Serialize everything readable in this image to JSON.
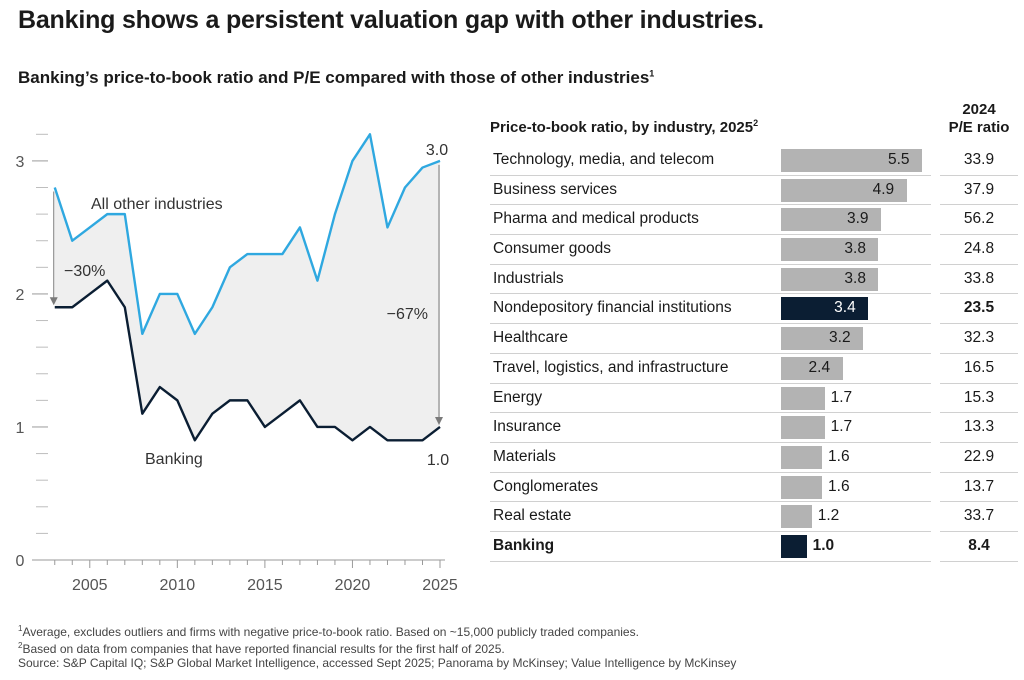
{
  "headline": "Banking shows a persistent valuation gap with other industries.",
  "subtitle": "Banking’s price-to-book ratio and P/E compared with those of other industries",
  "subtitle_sup": "1",
  "chart_data": [
    {
      "type": "line",
      "title": "",
      "xlabel": "",
      "ylabel": "",
      "x_ticks": [
        2005,
        2010,
        2015,
        2020,
        2025
      ],
      "y_ticks": [
        0,
        1,
        2,
        3
      ],
      "xlim": [
        2002.5,
        2025
      ],
      "ylim": [
        0,
        3.3
      ],
      "colors": {
        "other": "#2fa8e0",
        "banking": "#0b1e33",
        "fill": "#efefef",
        "arrow": "#7a7a7a"
      },
      "series": [
        {
          "name": "All other industries",
          "x": [
            2003,
            2004,
            2005,
            2006,
            2007,
            2008,
            2009,
            2010,
            2011,
            2012,
            2013,
            2014,
            2015,
            2016,
            2017,
            2018,
            2019,
            2020,
            2021,
            2022,
            2023,
            2024,
            2025
          ],
          "values": [
            2.8,
            2.4,
            2.5,
            2.6,
            2.6,
            1.7,
            2.0,
            2.0,
            1.7,
            1.9,
            2.2,
            2.3,
            2.3,
            2.3,
            2.5,
            2.1,
            2.6,
            3.0,
            3.2,
            2.5,
            2.8,
            2.95,
            3.0
          ]
        },
        {
          "name": "Banking",
          "x": [
            2003,
            2004,
            2005,
            2006,
            2007,
            2008,
            2009,
            2010,
            2011,
            2012,
            2013,
            2014,
            2015,
            2016,
            2017,
            2018,
            2019,
            2020,
            2021,
            2022,
            2023,
            2024,
            2025
          ],
          "values": [
            1.9,
            1.9,
            2.0,
            2.1,
            1.9,
            1.1,
            1.3,
            1.2,
            0.9,
            1.1,
            1.2,
            1.2,
            1.0,
            1.1,
            1.2,
            1.0,
            1.0,
            0.9,
            1.0,
            0.9,
            0.9,
            0.9,
            1.0
          ]
        }
      ],
      "annotations": {
        "gap_start": "−30%",
        "gap_end": "−67%",
        "end_other": "3.0",
        "end_banking": "1.0"
      }
    },
    {
      "type": "bar",
      "title": "Price-to-book ratio, by industry, 2025",
      "title_sup": "2",
      "pe_header": [
        "2024",
        "P/E ratio"
      ],
      "xlim": [
        0,
        5.8
      ],
      "colors": {
        "bar": "#b3b3b3",
        "highlight": "#0b1e33"
      },
      "categories": [
        "Technology, media, and telecom",
        "Business services",
        "Pharma and medical products",
        "Consumer goods",
        "Industrials",
        "Nondepository financial institutions",
        "Healthcare",
        "Travel, logistics, and infrastructure",
        "Energy",
        "Insurance",
        "Materials",
        "Conglomerates",
        "Real estate",
        "Banking"
      ],
      "values": [
        5.5,
        4.9,
        3.9,
        3.8,
        3.8,
        3.4,
        3.2,
        2.4,
        1.7,
        1.7,
        1.6,
        1.6,
        1.2,
        1.0
      ],
      "value_labels": [
        "5.5",
        "4.9",
        "3.9",
        "3.8",
        "3.8",
        "3.4",
        "3.2",
        "2.4",
        "1.7",
        "1.7",
        "1.6",
        "1.6",
        "1.2",
        "1.0"
      ],
      "pe_ratio": [
        "33.9",
        "37.9",
        "56.2",
        "24.8",
        "33.8",
        "23.5",
        "32.3",
        "16.5",
        "15.3",
        "13.3",
        "22.9",
        "13.7",
        "33.7",
        "8.4"
      ],
      "highlight": [
        "Nondepository financial institutions",
        "Banking"
      ],
      "bold": [
        "Banking"
      ]
    }
  ],
  "footnotes": {
    "note1_sup": "1",
    "note1": "Average, excludes outliers and firms with negative price-to-book ratio. Based on ~15,000 publicly traded companies.",
    "note2_sup": "2",
    "note2": "Based on data from companies that have reported financial results for the first half of 2025.",
    "source": "Source: S&P Capital IQ; S&P Global Market Intelligence, accessed Sept 2025; Panorama by McKinsey; Value Intelligence by McKinsey"
  }
}
